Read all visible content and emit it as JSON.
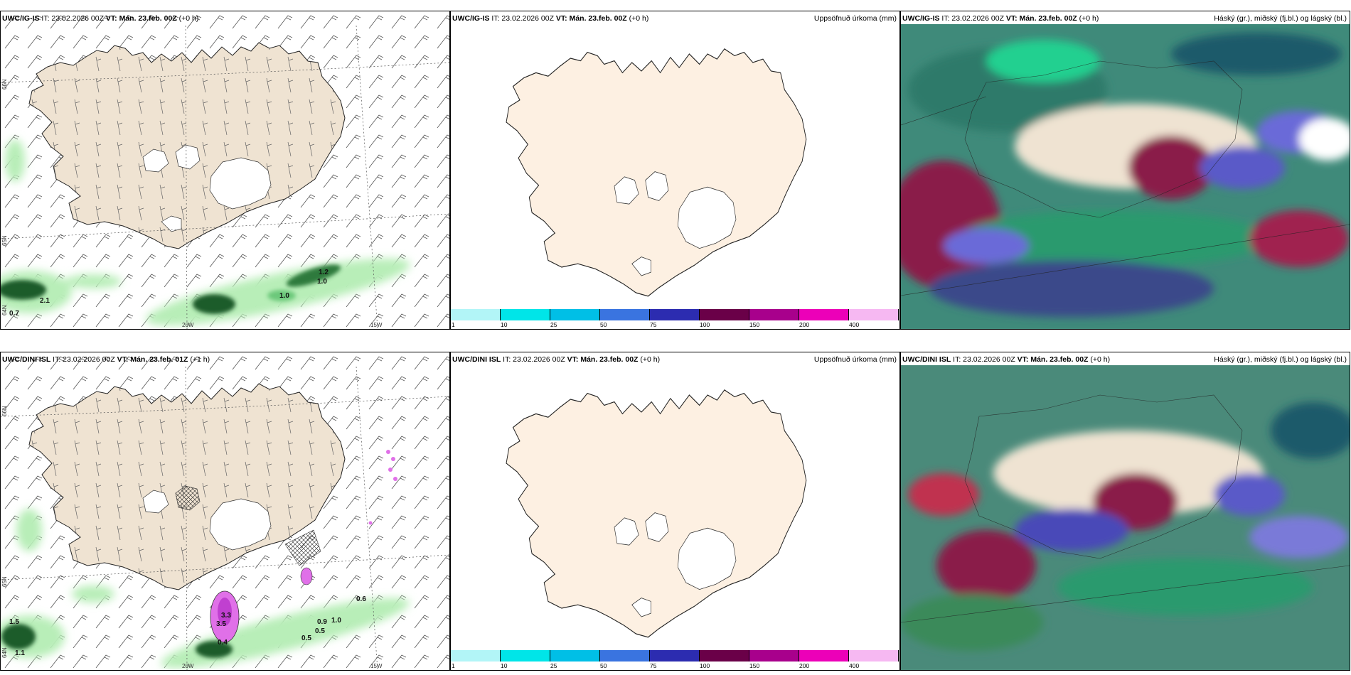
{
  "rows": [
    {
      "model": "UWC/IG-IS",
      "it": "IT: 23.02.2026 00Z",
      "vt_label": "VT:",
      "vt_wind": "Mán. 23.feb. 00Z",
      "lead_wind": "(+0 h)",
      "vt": "Mán. 23.feb. 00Z",
      "lead": "(+0 h)",
      "wind_values": [
        "1.2",
        "1.0",
        "1.0",
        "2.1",
        "0.7"
      ]
    },
    {
      "model": "UWC/DINI ISL",
      "it": "IT: 23.02.2026 00Z",
      "vt_label": "VT:",
      "vt_wind": "Mán. 23.feb. 01Z",
      "lead_wind": "(+1 h)",
      "vt": "Mán. 23.feb. 00Z",
      "lead": "(+0 h)",
      "wind_values": [
        "3.3",
        "3.5",
        "0.4",
        "0.6",
        "0.9",
        "1.0",
        "0.5",
        "0.5",
        "1.5",
        "1.1"
      ]
    }
  ],
  "titles": {
    "precip": "Uppsöfnuð úrkoma (mm)",
    "cloud": "Háský (gr.), miðský (fj.bl.) og lágský (bl.)"
  },
  "axis": {
    "lat66": "66N",
    "lat65": "65N",
    "lat64": "64N",
    "lon20": "20W",
    "lon15": "15W"
  },
  "colorbar": {
    "labels": [
      "1",
      "10",
      "25",
      "50",
      "75",
      "100",
      "150",
      "200",
      "400"
    ],
    "colors": [
      "#b2f5f7",
      "#00e5e8",
      "#00bfe6",
      "#3a74e0",
      "#2c2cb0",
      "#6a0048",
      "#a8008c",
      "#ec00b8",
      "#f6b8f2"
    ]
  },
  "colors": {
    "land": "#efe3d2",
    "land_precip": "#fdf0e2",
    "green_light": "#b8eeb8",
    "green_mid": "#6cc87a",
    "green_dark": "#1e5b2a",
    "magenta": "#e070e8"
  }
}
